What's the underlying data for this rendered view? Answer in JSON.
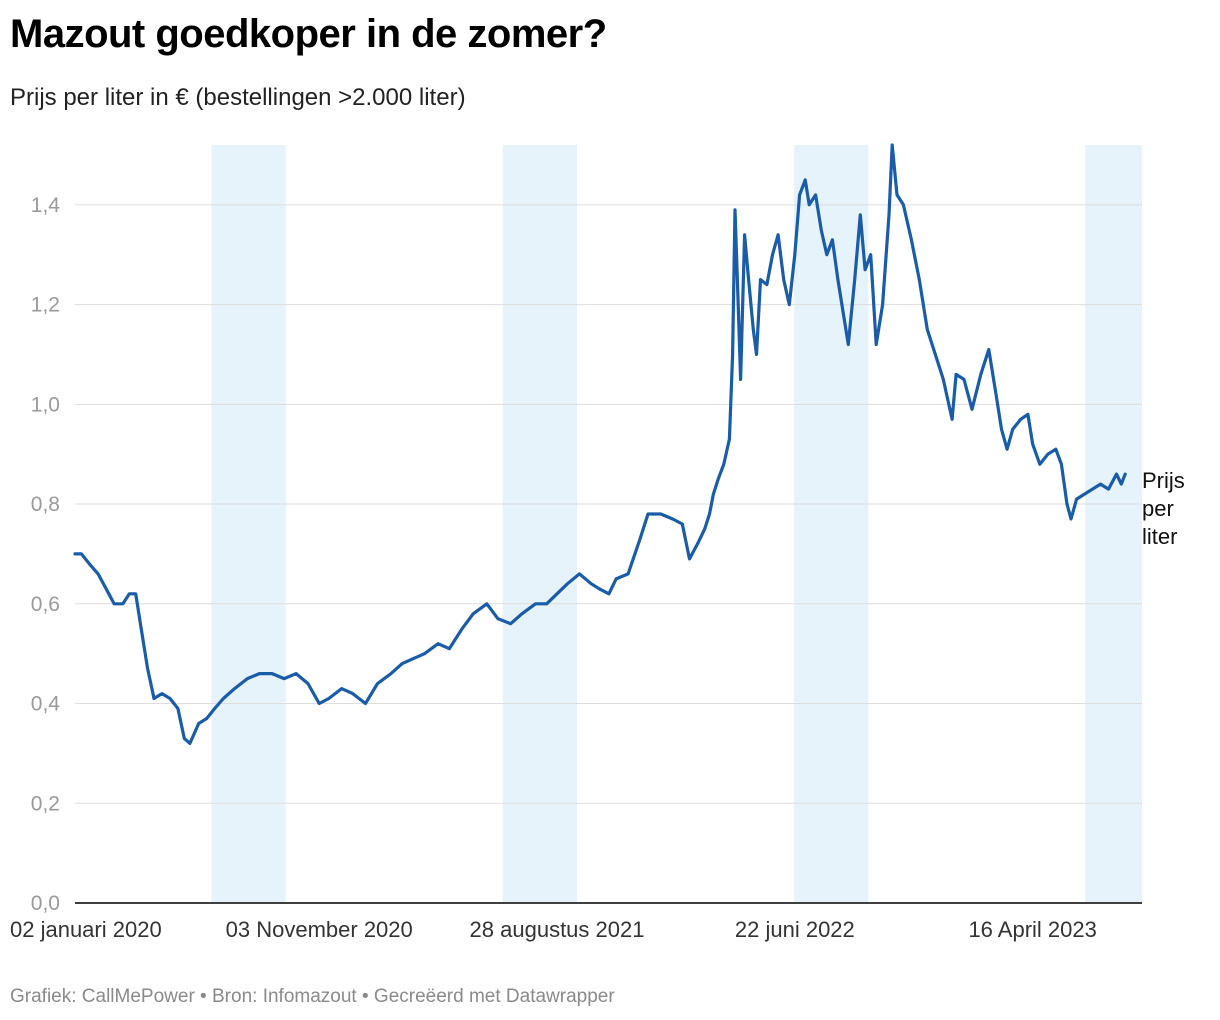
{
  "header": {
    "title": "Mazout goedkoper in de zomer?",
    "subtitle": "Prijs per liter in € (bestellingen >2.000 liter)"
  },
  "footer": {
    "credit": "Grafiek: CallMePower",
    "source": "Bron: Infomazout",
    "tool": "Gecreëerd met Datawrapper",
    "separator": " • "
  },
  "colors": {
    "line": "#1a5ca8",
    "summer_band": "#e6f3fa",
    "grid": "#dddddd",
    "tick_text": "#9a9a9a",
    "axis": "#000000"
  },
  "chart_data": {
    "type": "line",
    "series": [
      {
        "name": "Prijs per liter",
        "label_lines": [
          "Prijs",
          "per",
          "liter"
        ],
        "points": [
          [
            "2020-01-02",
            0.7
          ],
          [
            "2020-01-10",
            0.7
          ],
          [
            "2020-01-20",
            0.68
          ],
          [
            "2020-01-31",
            0.66
          ],
          [
            "2020-02-10",
            0.63
          ],
          [
            "2020-02-20",
            0.6
          ],
          [
            "2020-03-02",
            0.6
          ],
          [
            "2020-03-10",
            0.62
          ],
          [
            "2020-03-18",
            0.62
          ],
          [
            "2020-03-25",
            0.55
          ],
          [
            "2020-04-02",
            0.47
          ],
          [
            "2020-04-10",
            0.41
          ],
          [
            "2020-04-20",
            0.42
          ],
          [
            "2020-04-30",
            0.41
          ],
          [
            "2020-05-10",
            0.39
          ],
          [
            "2020-05-18",
            0.33
          ],
          [
            "2020-05-25",
            0.32
          ],
          [
            "2020-06-05",
            0.36
          ],
          [
            "2020-06-15",
            0.37
          ],
          [
            "2020-06-25",
            0.39
          ],
          [
            "2020-07-06",
            0.41
          ],
          [
            "2020-07-20",
            0.43
          ],
          [
            "2020-08-05",
            0.45
          ],
          [
            "2020-08-20",
            0.46
          ],
          [
            "2020-09-05",
            0.46
          ],
          [
            "2020-09-20",
            0.45
          ],
          [
            "2020-10-05",
            0.46
          ],
          [
            "2020-10-20",
            0.44
          ],
          [
            "2020-11-03",
            0.4
          ],
          [
            "2020-11-15",
            0.41
          ],
          [
            "2020-12-01",
            0.43
          ],
          [
            "2020-12-15",
            0.42
          ],
          [
            "2020-12-31",
            0.4
          ],
          [
            "2021-01-15",
            0.44
          ],
          [
            "2021-02-01",
            0.46
          ],
          [
            "2021-02-15",
            0.48
          ],
          [
            "2021-03-01",
            0.49
          ],
          [
            "2021-03-15",
            0.5
          ],
          [
            "2021-04-01",
            0.52
          ],
          [
            "2021-04-15",
            0.51
          ],
          [
            "2021-05-01",
            0.55
          ],
          [
            "2021-05-15",
            0.58
          ],
          [
            "2021-06-01",
            0.6
          ],
          [
            "2021-06-15",
            0.57
          ],
          [
            "2021-07-01",
            0.56
          ],
          [
            "2021-07-15",
            0.58
          ],
          [
            "2021-08-01",
            0.6
          ],
          [
            "2021-08-15",
            0.6
          ],
          [
            "2021-08-28",
            0.62
          ],
          [
            "2021-09-10",
            0.64
          ],
          [
            "2021-09-25",
            0.66
          ],
          [
            "2021-10-10",
            0.64
          ],
          [
            "2021-10-20",
            0.63
          ],
          [
            "2021-11-01",
            0.62
          ],
          [
            "2021-11-10",
            0.65
          ],
          [
            "2021-11-25",
            0.66
          ],
          [
            "2021-12-10",
            0.73
          ],
          [
            "2021-12-20",
            0.78
          ],
          [
            "2022-01-05",
            0.78
          ],
          [
            "2022-01-20",
            0.77
          ],
          [
            "2022-02-01",
            0.76
          ],
          [
            "2022-02-10",
            0.69
          ],
          [
            "2022-02-20",
            0.72
          ],
          [
            "2022-03-01",
            0.75
          ],
          [
            "2022-03-07",
            0.78
          ],
          [
            "2022-03-12",
            0.82
          ],
          [
            "2022-03-18",
            0.85
          ],
          [
            "2022-03-25",
            0.88
          ],
          [
            "2022-04-01",
            0.93
          ],
          [
            "2022-04-05",
            1.1
          ],
          [
            "2022-04-08",
            1.39
          ],
          [
            "2022-04-12",
            1.2
          ],
          [
            "2022-04-15",
            1.05
          ],
          [
            "2022-04-20",
            1.34
          ],
          [
            "2022-04-25",
            1.25
          ],
          [
            "2022-05-01",
            1.15
          ],
          [
            "2022-05-05",
            1.1
          ],
          [
            "2022-05-10",
            1.25
          ],
          [
            "2022-05-18",
            1.24
          ],
          [
            "2022-05-25",
            1.3
          ],
          [
            "2022-06-01",
            1.34
          ],
          [
            "2022-06-08",
            1.25
          ],
          [
            "2022-06-15",
            1.2
          ],
          [
            "2022-06-22",
            1.3
          ],
          [
            "2022-06-28",
            1.42
          ],
          [
            "2022-07-05",
            1.45
          ],
          [
            "2022-07-10",
            1.4
          ],
          [
            "2022-07-18",
            1.42
          ],
          [
            "2022-07-25",
            1.35
          ],
          [
            "2022-08-01",
            1.3
          ],
          [
            "2022-08-08",
            1.33
          ],
          [
            "2022-08-15",
            1.25
          ],
          [
            "2022-08-22",
            1.18
          ],
          [
            "2022-08-28",
            1.12
          ],
          [
            "2022-09-05",
            1.25
          ],
          [
            "2022-09-12",
            1.38
          ],
          [
            "2022-09-18",
            1.27
          ],
          [
            "2022-09-25",
            1.3
          ],
          [
            "2022-10-02",
            1.12
          ],
          [
            "2022-10-10",
            1.2
          ],
          [
            "2022-10-18",
            1.38
          ],
          [
            "2022-10-22",
            1.52
          ],
          [
            "2022-10-28",
            1.42
          ],
          [
            "2022-11-05",
            1.4
          ],
          [
            "2022-11-15",
            1.33
          ],
          [
            "2022-11-25",
            1.25
          ],
          [
            "2022-12-05",
            1.15
          ],
          [
            "2022-12-15",
            1.1
          ],
          [
            "2022-12-25",
            1.05
          ],
          [
            "2023-01-05",
            0.97
          ],
          [
            "2023-01-10",
            1.06
          ],
          [
            "2023-01-20",
            1.05
          ],
          [
            "2023-01-30",
            0.99
          ],
          [
            "2023-02-10",
            1.06
          ],
          [
            "2023-02-20",
            1.11
          ],
          [
            "2023-03-01",
            1.02
          ],
          [
            "2023-03-08",
            0.95
          ],
          [
            "2023-03-15",
            0.91
          ],
          [
            "2023-03-22",
            0.95
          ],
          [
            "2023-04-01",
            0.97
          ],
          [
            "2023-04-10",
            0.98
          ],
          [
            "2023-04-16",
            0.92
          ],
          [
            "2023-04-25",
            0.88
          ],
          [
            "2023-05-05",
            0.9
          ],
          [
            "2023-05-15",
            0.91
          ],
          [
            "2023-05-22",
            0.88
          ],
          [
            "2023-05-29",
            0.8
          ],
          [
            "2023-06-03",
            0.77
          ],
          [
            "2023-06-10",
            0.81
          ],
          [
            "2023-06-20",
            0.82
          ],
          [
            "2023-06-30",
            0.83
          ],
          [
            "2023-07-10",
            0.84
          ],
          [
            "2023-07-20",
            0.83
          ],
          [
            "2023-07-30",
            0.86
          ],
          [
            "2023-08-05",
            0.84
          ],
          [
            "2023-08-10",
            0.86
          ]
        ]
      }
    ],
    "summer_bands": [
      [
        "2020-06-21",
        "2020-09-22"
      ],
      [
        "2021-06-21",
        "2021-09-22"
      ],
      [
        "2022-06-21",
        "2022-09-22"
      ],
      [
        "2023-06-21",
        "2023-08-31"
      ]
    ],
    "x_range": [
      "2020-01-02",
      "2023-08-31"
    ],
    "x_ticks": [
      {
        "date": "2020-01-02",
        "label": "02 januari 2020"
      },
      {
        "date": "2020-11-03",
        "label": "03 November 2020"
      },
      {
        "date": "2021-08-28",
        "label": "28 augustus 2021"
      },
      {
        "date": "2022-06-22",
        "label": "22 juni 2022"
      },
      {
        "date": "2023-04-16",
        "label": "16 April 2023"
      }
    ],
    "ylim": [
      0,
      1.52
    ],
    "y_ticks": [
      {
        "value": 0.0,
        "label": "0,0"
      },
      {
        "value": 0.2,
        "label": "0,2"
      },
      {
        "value": 0.4,
        "label": "0,4"
      },
      {
        "value": 0.6,
        "label": "0,6"
      },
      {
        "value": 0.8,
        "label": "0,8"
      },
      {
        "value": 1.0,
        "label": "1,0"
      },
      {
        "value": 1.2,
        "label": "1,2"
      },
      {
        "value": 1.4,
        "label": "1,4"
      }
    ],
    "grid": true,
    "legend": "direct label at line end"
  }
}
